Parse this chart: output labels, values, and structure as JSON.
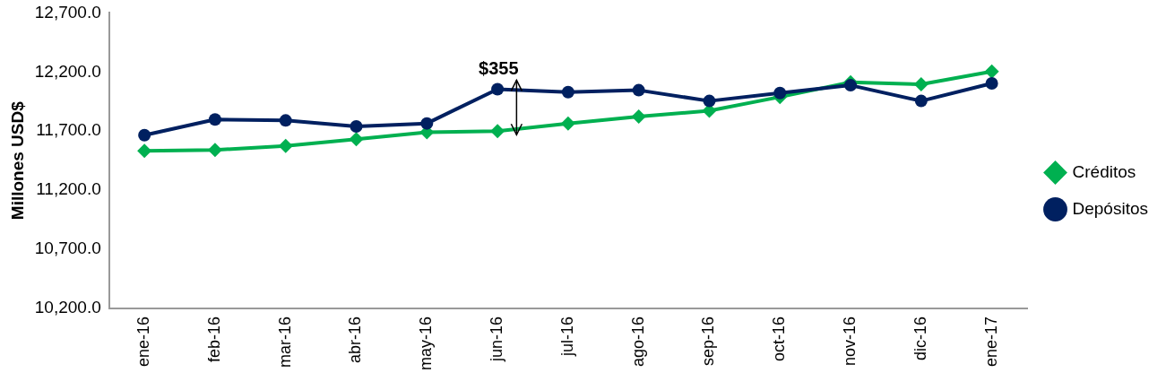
{
  "chart_data": {
    "type": "line",
    "ylabel": "Millones USD$",
    "categories": [
      "ene-16",
      "feb-16",
      "mar-16",
      "abr-16",
      "may-16",
      "jun-16",
      "jul-16",
      "ago-16",
      "sep-16",
      "oct-16",
      "nov-16",
      "dic-16",
      "ene-17"
    ],
    "series": [
      {
        "name": "Créditos",
        "color": "#00b050",
        "marker": "diamond",
        "values": [
          11533,
          11541,
          11574,
          11632,
          11690,
          11700,
          11765,
          11823,
          11873,
          11989,
          12113,
          12096,
          12204
        ]
      },
      {
        "name": "Depósitos",
        "color": "#002060",
        "marker": "circle",
        "values": [
          11666,
          11798,
          11790,
          11740,
          11765,
          12055,
          12030,
          12046,
          11955,
          12022,
          12088,
          11955,
          12104
        ]
      }
    ],
    "ylim": [
      10200,
      12700
    ],
    "yticks": [
      {
        "value": 10200,
        "label": "10,200.0"
      },
      {
        "value": 10700,
        "label": "10,700.0"
      },
      {
        "value": 11200,
        "label": "11,200.0"
      },
      {
        "value": 11700,
        "label": "11,700.0"
      },
      {
        "value": 12200,
        "label": "12,200.0"
      },
      {
        "value": 12700,
        "label": "12,700.0"
      }
    ],
    "annotations": [
      {
        "text": "$355",
        "x": "jun-16",
        "y": 12055
      }
    ],
    "grid": false,
    "legend": "right"
  }
}
